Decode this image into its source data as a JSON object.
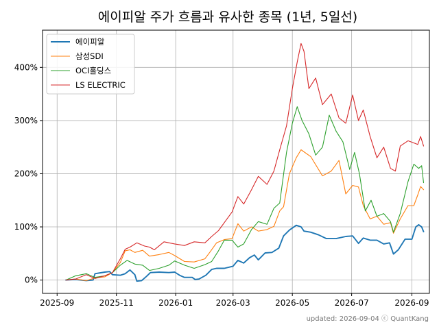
{
  "chart_data": {
    "type": "line",
    "title": "에이피알 주가 흐름과 유사한 종목 (1년, 5일선)",
    "xlabel": "",
    "ylabel": "",
    "x_ticks": [
      "2025-09",
      "2025-11",
      "2026-01",
      "2026-03",
      "2026-05",
      "2026-07",
      "2026-09"
    ],
    "y_ticks": [
      "0%",
      "100%",
      "200%",
      "300%",
      "400%"
    ],
    "x_range": [
      "2025-08-17",
      "2026-09-19"
    ],
    "ylim": [
      -25,
      470
    ],
    "grid": true,
    "legend_position": "top-left",
    "footnote": "updated: 2026-09-04 ⓒ QuantKang",
    "series": [
      {
        "name": "에이피알",
        "color": "#1f77b4",
        "points": [
          [
            "2025-09-10",
            0
          ],
          [
            "2025-09-20",
            1
          ],
          [
            "2025-10-01",
            -1
          ],
          [
            "2025-10-08",
            0
          ],
          [
            "2025-10-10",
            12
          ],
          [
            "2025-10-20",
            15
          ],
          [
            "2025-10-25",
            16
          ],
          [
            "2025-10-28",
            10
          ],
          [
            "2025-11-05",
            9
          ],
          [
            "2025-11-10",
            12
          ],
          [
            "2025-11-15",
            19
          ],
          [
            "2025-11-20",
            10
          ],
          [
            "2025-11-22",
            -2
          ],
          [
            "2025-11-27",
            -1
          ],
          [
            "2025-12-02",
            7
          ],
          [
            "2025-12-06",
            14
          ],
          [
            "2025-12-15",
            15
          ],
          [
            "2025-12-25",
            14
          ],
          [
            "2025-12-31",
            15
          ],
          [
            "2026-01-05",
            9
          ],
          [
            "2026-01-10",
            5
          ],
          [
            "2026-01-18",
            5
          ],
          [
            "2026-01-21",
            1
          ],
          [
            "2026-01-25",
            2
          ],
          [
            "2026-02-01",
            9
          ],
          [
            "2026-02-07",
            20
          ],
          [
            "2026-02-12",
            22
          ],
          [
            "2026-02-20",
            22
          ],
          [
            "2026-03-01",
            26
          ],
          [
            "2026-03-06",
            37
          ],
          [
            "2026-03-12",
            32
          ],
          [
            "2026-03-18",
            42
          ],
          [
            "2026-03-23",
            47
          ],
          [
            "2026-03-27",
            38
          ],
          [
            "2026-04-03",
            51
          ],
          [
            "2026-04-10",
            52
          ],
          [
            "2026-04-17",
            60
          ],
          [
            "2026-04-22",
            83
          ],
          [
            "2026-04-28",
            94
          ],
          [
            "2026-05-05",
            103
          ],
          [
            "2026-05-10",
            100
          ],
          [
            "2026-05-13",
            92
          ],
          [
            "2026-05-20",
            90
          ],
          [
            "2026-05-28",
            85
          ],
          [
            "2026-06-05",
            78
          ],
          [
            "2026-06-15",
            78
          ],
          [
            "2026-06-25",
            82
          ],
          [
            "2026-07-02",
            83
          ],
          [
            "2026-07-08",
            69
          ],
          [
            "2026-07-13",
            79
          ],
          [
            "2026-07-20",
            75
          ],
          [
            "2026-07-27",
            75
          ],
          [
            "2026-08-03",
            68
          ],
          [
            "2026-08-09",
            70
          ],
          [
            "2026-08-13",
            49
          ],
          [
            "2026-08-18",
            57
          ],
          [
            "2026-08-25",
            77
          ],
          [
            "2026-09-01",
            77
          ],
          [
            "2026-09-05",
            100
          ],
          [
            "2026-09-08",
            104
          ],
          [
            "2026-09-11",
            100
          ],
          [
            "2026-09-13",
            91
          ]
        ]
      },
      {
        "name": "삼성SDI",
        "color": "#ff7f0e",
        "points": [
          [
            "2025-09-10",
            0
          ],
          [
            "2025-09-20",
            2
          ],
          [
            "2025-10-01",
            -1
          ],
          [
            "2025-10-10",
            4
          ],
          [
            "2025-10-20",
            6
          ],
          [
            "2025-10-28",
            14
          ],
          [
            "2025-11-05",
            33
          ],
          [
            "2025-11-10",
            55
          ],
          [
            "2025-11-15",
            57
          ],
          [
            "2025-11-20",
            52
          ],
          [
            "2025-11-28",
            56
          ],
          [
            "2025-12-05",
            45
          ],
          [
            "2025-12-15",
            48
          ],
          [
            "2025-12-25",
            52
          ],
          [
            "2025-12-31",
            46
          ],
          [
            "2026-01-10",
            35
          ],
          [
            "2026-01-20",
            34
          ],
          [
            "2026-01-31",
            40
          ],
          [
            "2026-02-05",
            52
          ],
          [
            "2026-02-12",
            70
          ],
          [
            "2026-02-20",
            76
          ],
          [
            "2026-02-28",
            78
          ],
          [
            "2026-03-06",
            106
          ],
          [
            "2026-03-12",
            92
          ],
          [
            "2026-03-20",
            100
          ],
          [
            "2026-03-27",
            92
          ],
          [
            "2026-04-05",
            95
          ],
          [
            "2026-04-12",
            101
          ],
          [
            "2026-04-18",
            130
          ],
          [
            "2026-04-22",
            138
          ],
          [
            "2026-04-28",
            200
          ],
          [
            "2026-05-05",
            230
          ],
          [
            "2026-05-10",
            245
          ],
          [
            "2026-05-20",
            232
          ],
          [
            "2026-06-01",
            196
          ],
          [
            "2026-06-10",
            205
          ],
          [
            "2026-06-18",
            225
          ],
          [
            "2026-06-25",
            162
          ],
          [
            "2026-07-02",
            178
          ],
          [
            "2026-07-08",
            175
          ],
          [
            "2026-07-13",
            140
          ],
          [
            "2026-07-20",
            115
          ],
          [
            "2026-07-27",
            120
          ],
          [
            "2026-08-03",
            105
          ],
          [
            "2026-08-10",
            108
          ],
          [
            "2026-08-13",
            88
          ],
          [
            "2026-08-20",
            115
          ],
          [
            "2026-08-28",
            140
          ],
          [
            "2026-09-03",
            140
          ],
          [
            "2026-09-07",
            160
          ],
          [
            "2026-09-10",
            176
          ],
          [
            "2026-09-13",
            170
          ]
        ]
      },
      {
        "name": "OCI홀딩스",
        "color": "#2ca02c",
        "points": [
          [
            "2025-09-10",
            0
          ],
          [
            "2025-09-20",
            8
          ],
          [
            "2025-10-01",
            12
          ],
          [
            "2025-10-10",
            5
          ],
          [
            "2025-10-20",
            8
          ],
          [
            "2025-10-28",
            14
          ],
          [
            "2025-11-05",
            28
          ],
          [
            "2025-11-12",
            37
          ],
          [
            "2025-11-20",
            30
          ],
          [
            "2025-11-28",
            28
          ],
          [
            "2025-12-05",
            18
          ],
          [
            "2025-12-15",
            22
          ],
          [
            "2025-12-25",
            28
          ],
          [
            "2025-12-31",
            36
          ],
          [
            "2026-01-10",
            28
          ],
          [
            "2026-01-20",
            22
          ],
          [
            "2026-01-31",
            29
          ],
          [
            "2026-02-07",
            35
          ],
          [
            "2026-02-14",
            55
          ],
          [
            "2026-02-20",
            75
          ],
          [
            "2026-02-28",
            75
          ],
          [
            "2026-03-06",
            62
          ],
          [
            "2026-03-12",
            68
          ],
          [
            "2026-03-20",
            95
          ],
          [
            "2026-03-27",
            110
          ],
          [
            "2026-04-05",
            105
          ],
          [
            "2026-04-12",
            135
          ],
          [
            "2026-04-18",
            145
          ],
          [
            "2026-04-25",
            240
          ],
          [
            "2026-05-01",
            295
          ],
          [
            "2026-05-06",
            326
          ],
          [
            "2026-05-11",
            300
          ],
          [
            "2026-05-18",
            275
          ],
          [
            "2026-05-25",
            235
          ],
          [
            "2026-06-01",
            250
          ],
          [
            "2026-06-08",
            310
          ],
          [
            "2026-06-15",
            280
          ],
          [
            "2026-06-22",
            260
          ],
          [
            "2026-06-29",
            208
          ],
          [
            "2026-07-04",
            240
          ],
          [
            "2026-07-09",
            200
          ],
          [
            "2026-07-15",
            130
          ],
          [
            "2026-07-21",
            150
          ],
          [
            "2026-07-27",
            120
          ],
          [
            "2026-08-03",
            125
          ],
          [
            "2026-08-10",
            110
          ],
          [
            "2026-08-13",
            90
          ],
          [
            "2026-08-20",
            125
          ],
          [
            "2026-08-28",
            185
          ],
          [
            "2026-09-03",
            218
          ],
          [
            "2026-09-08",
            210
          ],
          [
            "2026-09-11",
            215
          ],
          [
            "2026-09-13",
            183
          ]
        ]
      },
      {
        "name": "LS ELECTRIC",
        "color": "#d62728",
        "points": [
          [
            "2025-09-10",
            0
          ],
          [
            "2025-09-20",
            2
          ],
          [
            "2025-10-01",
            10
          ],
          [
            "2025-10-10",
            3
          ],
          [
            "2025-10-20",
            8
          ],
          [
            "2025-10-28",
            14
          ],
          [
            "2025-11-05",
            40
          ],
          [
            "2025-11-10",
            58
          ],
          [
            "2025-11-15",
            62
          ],
          [
            "2025-11-22",
            70
          ],
          [
            "2025-11-30",
            64
          ],
          [
            "2025-12-05",
            62
          ],
          [
            "2025-12-10",
            57
          ],
          [
            "2025-12-20",
            72
          ],
          [
            "2025-12-31",
            68
          ],
          [
            "2026-01-10",
            65
          ],
          [
            "2026-01-20",
            72
          ],
          [
            "2026-01-31",
            70
          ],
          [
            "2026-02-07",
            82
          ],
          [
            "2026-02-14",
            93
          ],
          [
            "2026-02-20",
            108
          ],
          [
            "2026-02-28",
            128
          ],
          [
            "2026-03-06",
            157
          ],
          [
            "2026-03-12",
            143
          ],
          [
            "2026-03-20",
            170
          ],
          [
            "2026-03-27",
            195
          ],
          [
            "2026-04-05",
            180
          ],
          [
            "2026-04-12",
            205
          ],
          [
            "2026-04-18",
            245
          ],
          [
            "2026-04-25",
            290
          ],
          [
            "2026-05-01",
            360
          ],
          [
            "2026-05-06",
            410
          ],
          [
            "2026-05-10",
            445
          ],
          [
            "2026-05-13",
            430
          ],
          [
            "2026-05-18",
            360
          ],
          [
            "2026-05-25",
            380
          ],
          [
            "2026-06-01",
            330
          ],
          [
            "2026-06-10",
            350
          ],
          [
            "2026-06-18",
            305
          ],
          [
            "2026-06-25",
            295
          ],
          [
            "2026-07-02",
            348
          ],
          [
            "2026-07-08",
            300
          ],
          [
            "2026-07-13",
            320
          ],
          [
            "2026-07-20",
            270
          ],
          [
            "2026-07-27",
            230
          ],
          [
            "2026-08-03",
            250
          ],
          [
            "2026-08-10",
            210
          ],
          [
            "2026-08-15",
            205
          ],
          [
            "2026-08-20",
            252
          ],
          [
            "2026-08-28",
            262
          ],
          [
            "2026-09-03",
            258
          ],
          [
            "2026-09-07",
            255
          ],
          [
            "2026-09-10",
            270
          ],
          [
            "2026-09-13",
            252
          ]
        ]
      }
    ]
  }
}
